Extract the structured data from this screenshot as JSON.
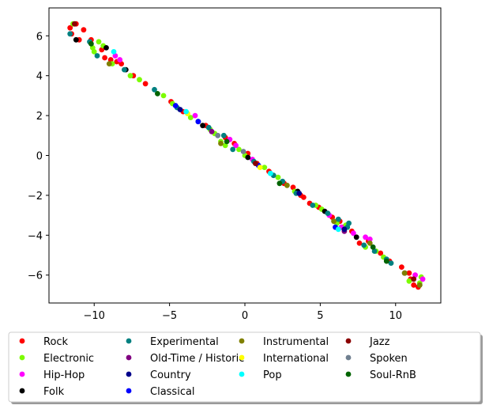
{
  "chart_data": {
    "type": "scatter",
    "title": "",
    "xlabel": "",
    "ylabel": "",
    "xlim": [
      -13,
      13
    ],
    "ylim": [
      -7.4,
      7.4
    ],
    "xticks": [
      -10,
      -5,
      0,
      5,
      10
    ],
    "yticks": [
      -6,
      -4,
      -2,
      0,
      2,
      4,
      6
    ],
    "xtick_labels": [
      "−10",
      "−5",
      "0",
      "5",
      "10"
    ],
    "ytick_labels": [
      "−6",
      "−4",
      "−2",
      "0",
      "2",
      "4",
      "6"
    ],
    "grid": false,
    "legend_position": "below plot, 4 columns, framed with shadow",
    "series": [
      {
        "name": "Rock",
        "color": "#ff0000",
        "points": [
          [
            -11.6,
            6.4
          ],
          [
            -11.5,
            6.1
          ],
          [
            -11.2,
            6.6
          ],
          [
            -11.0,
            5.8
          ],
          [
            -10.7,
            6.3
          ],
          [
            -10.2,
            5.8
          ],
          [
            -9.5,
            5.3
          ],
          [
            -9.3,
            4.9
          ],
          [
            -8.5,
            4.7
          ],
          [
            -8.2,
            4.6
          ],
          [
            -6.6,
            3.6
          ],
          [
            -4.9,
            2.7
          ],
          [
            -2.6,
            1.5
          ],
          [
            -1.3,
            0.9
          ],
          [
            -0.7,
            0.6
          ],
          [
            0.2,
            0.1
          ],
          [
            0.8,
            -0.4
          ],
          [
            1.6,
            -0.8
          ],
          [
            2.6,
            -1.4
          ],
          [
            3.2,
            -1.6
          ],
          [
            3.7,
            -2.0
          ],
          [
            4.3,
            -2.4
          ],
          [
            4.9,
            -2.6
          ],
          [
            5.8,
            -3.1
          ],
          [
            6.5,
            -3.6
          ],
          [
            7.1,
            -3.8
          ],
          [
            7.6,
            -4.4
          ],
          [
            8.2,
            -4.3
          ],
          [
            9.0,
            -4.9
          ],
          [
            10.4,
            -5.6
          ],
          [
            11.0,
            -6.2
          ],
          [
            11.2,
            -6.5
          ],
          [
            11.5,
            -6.6
          ],
          [
            10.9,
            -5.9
          ],
          [
            9.6,
            -5.3
          ],
          [
            6.3,
            -3.3
          ],
          [
            3.9,
            -2.1
          ],
          [
            -4.1,
            2.2
          ],
          [
            -7.4,
            4.0
          ],
          [
            -8.9,
            4.8
          ]
        ]
      },
      {
        "name": "Electronic",
        "color": "#7cfc00",
        "points": [
          [
            -11.4,
            6.6
          ],
          [
            -10.1,
            5.4
          ],
          [
            -9.7,
            5.7
          ],
          [
            -9.4,
            5.5
          ],
          [
            -8.8,
            4.6
          ],
          [
            -7.6,
            4.0
          ],
          [
            -7.0,
            3.8
          ],
          [
            -5.4,
            3.0
          ],
          [
            -4.8,
            2.6
          ],
          [
            -3.6,
            1.9
          ],
          [
            -2.0,
            1.1
          ],
          [
            -1.6,
            0.7
          ],
          [
            -1.3,
            0.5
          ],
          [
            -0.4,
            0.3
          ],
          [
            0.0,
            0.0
          ],
          [
            1.3,
            -0.6
          ],
          [
            2.2,
            -1.1
          ],
          [
            3.3,
            -1.8
          ],
          [
            5.1,
            -2.7
          ],
          [
            6.1,
            -3.4
          ],
          [
            6.7,
            -3.5
          ],
          [
            8.0,
            -4.6
          ],
          [
            8.7,
            -4.8
          ],
          [
            9.2,
            -5.1
          ],
          [
            10.9,
            -6.3
          ],
          [
            11.6,
            -6.4
          ],
          [
            11.7,
            -6.1
          ],
          [
            -10.0,
            5.2
          ],
          [
            -2.3,
            1.3
          ],
          [
            4.7,
            -2.5
          ]
        ]
      },
      {
        "name": "Hip-Hop",
        "color": "#ff00ff",
        "points": [
          [
            -8.6,
            5.0
          ],
          [
            -8.3,
            4.8
          ],
          [
            -3.3,
            2.0
          ],
          [
            -1.0,
            0.8
          ],
          [
            -0.6,
            0.5
          ],
          [
            0.5,
            -0.2
          ],
          [
            6.4,
            -3.6
          ],
          [
            7.2,
            -3.9
          ],
          [
            8.0,
            -4.1
          ],
          [
            8.3,
            -4.2
          ],
          [
            11.3,
            -6.0
          ],
          [
            11.8,
            -6.2
          ],
          [
            5.6,
            -3.0
          ]
        ]
      },
      {
        "name": "Folk",
        "color": "#000000",
        "points": [
          [
            -11.2,
            5.8
          ],
          [
            -9.2,
            5.4
          ],
          [
            -7.9,
            4.3
          ],
          [
            -2.8,
            1.5
          ],
          [
            0.2,
            -0.1
          ],
          [
            3.5,
            -1.8
          ],
          [
            5.3,
            -2.8
          ],
          [
            7.4,
            -4.1
          ],
          [
            10.6,
            -5.9
          ]
        ]
      },
      {
        "name": "Experimental",
        "color": "#008080",
        "points": [
          [
            -11.6,
            6.1
          ],
          [
            -10.3,
            5.7
          ],
          [
            -9.8,
            5.0
          ],
          [
            -6.0,
            3.3
          ],
          [
            -4.5,
            2.4
          ],
          [
            -2.4,
            1.4
          ],
          [
            -1.4,
            1.0
          ],
          [
            -0.8,
            0.3
          ],
          [
            0.6,
            -0.3
          ],
          [
            2.5,
            -1.3
          ],
          [
            3.4,
            -1.9
          ],
          [
            4.5,
            -2.5
          ],
          [
            6.2,
            -3.2
          ],
          [
            6.8,
            -3.6
          ],
          [
            7.9,
            -4.5
          ],
          [
            8.6,
            -4.8
          ],
          [
            9.4,
            -5.2
          ],
          [
            9.7,
            -5.4
          ],
          [
            11.6,
            -6.5
          ],
          [
            -3.1,
            1.7
          ],
          [
            1.9,
            -1.0
          ],
          [
            5.5,
            -2.9
          ],
          [
            -8.0,
            4.3
          ],
          [
            6.9,
            -3.4
          ]
        ]
      },
      {
        "name": "Old-Time / Historic",
        "color": "#800080",
        "points": [
          [
            -2.2,
            1.2
          ],
          [
            6.6,
            -3.8
          ]
        ]
      },
      {
        "name": "Country",
        "color": "#00008b",
        "points": [
          [
            -4.3,
            2.3
          ],
          [
            3.6,
            -1.9
          ],
          [
            6.6,
            -3.7
          ]
        ]
      },
      {
        "name": "Classical",
        "color": "#0000ff",
        "points": [
          [
            -3.1,
            1.7
          ],
          [
            -4.6,
            2.5
          ],
          [
            6.0,
            -3.6
          ],
          [
            0.9,
            -0.5
          ]
        ]
      },
      {
        "name": "Instrumental",
        "color": "#808000",
        "points": [
          [
            -1.6,
            0.6
          ],
          [
            2.8,
            -1.5
          ],
          [
            5.9,
            -3.3
          ],
          [
            8.3,
            -4.4
          ],
          [
            10.6,
            -5.9
          ],
          [
            11.6,
            -6.5
          ],
          [
            -9.0,
            4.6
          ]
        ]
      },
      {
        "name": "International",
        "color": "#ffff00",
        "points": [
          [
            -3.8,
            2.1
          ],
          [
            1.0,
            -0.6
          ]
        ]
      },
      {
        "name": "Pop",
        "color": "#00ffff",
        "points": [
          [
            -8.7,
            5.2
          ],
          [
            -3.9,
            2.2
          ],
          [
            1.7,
            -0.9
          ],
          [
            6.2,
            -3.7
          ]
        ]
      },
      {
        "name": "Jazz",
        "color": "#8b0000",
        "points": [
          [
            -11.3,
            6.6
          ],
          [
            0.7,
            -0.4
          ],
          [
            11.2,
            -6.2
          ]
        ]
      },
      {
        "name": "Spoken",
        "color": "#708090",
        "points": [
          [
            -0.1,
            0.2
          ],
          [
            -1.8,
            1.0
          ]
        ]
      },
      {
        "name": "Soul-RnB",
        "color": "#006400",
        "points": [
          [
            -10.2,
            5.6
          ],
          [
            -5.8,
            3.1
          ],
          [
            -1.2,
            0.7
          ],
          [
            2.3,
            -1.4
          ],
          [
            8.5,
            -4.6
          ],
          [
            9.4,
            -5.3
          ]
        ]
      }
    ]
  }
}
